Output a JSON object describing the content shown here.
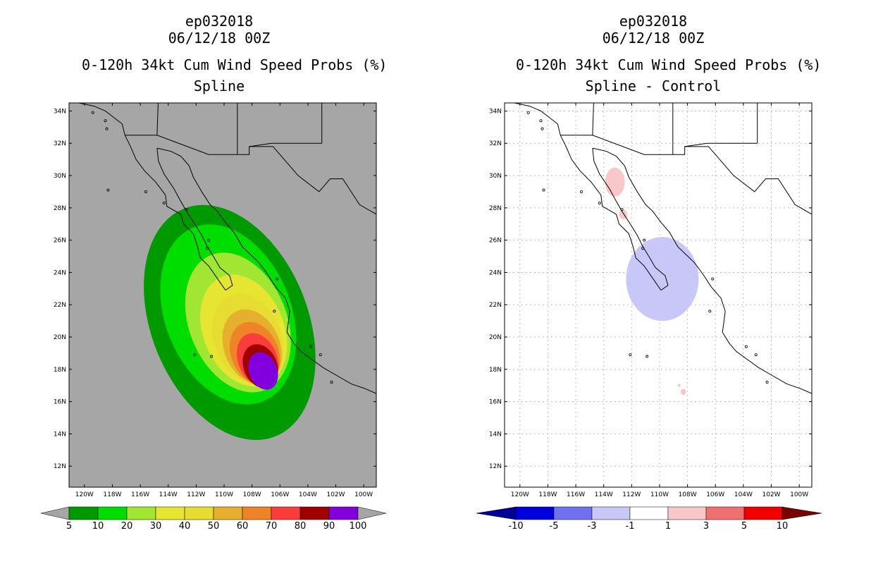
{
  "colors": {
    "left_background": "#a6a6a6",
    "right_background": "#ffffff",
    "coast": "#000000"
  },
  "chart_data": [
    {
      "type": "contour-map",
      "storm_id": "ep032018",
      "datetime": "06/12/18 00Z",
      "title": "0-120h 34kt Cum Wind Speed Probs (%)",
      "subtitle": "Spline",
      "x_ticks": [
        "120W",
        "118W",
        "116W",
        "114W",
        "112W",
        "110W",
        "108W",
        "106W",
        "104W",
        "102W",
        "100W"
      ],
      "y_ticks": [
        "34N",
        "32N",
        "30N",
        "28N",
        "26N",
        "24N",
        "22N",
        "20N",
        "18N",
        "16N",
        "14N",
        "12N"
      ],
      "xlim_deg_west": [
        121.1,
        99.1
      ],
      "ylim_deg_north": [
        10.7,
        34.5
      ],
      "colorbar": {
        "labels": [
          "5",
          "10",
          "20",
          "30",
          "40",
          "50",
          "60",
          "70",
          "80",
          "90",
          "100"
        ],
        "colors": [
          "#009900",
          "#00dd00",
          "#a0e632",
          "#e6e632",
          "#e6dc32",
          "#e6af2d",
          "#f08228",
          "#fa3c3c",
          "#a00000",
          "#8200dc"
        ]
      },
      "contours": [
        {
          "level": 5,
          "center_lon": -109.6,
          "center_lat": 20.9,
          "radius_lon": 5.6,
          "radius_lat": 7.6
        },
        {
          "level": 10,
          "center_lon": -109.7,
          "center_lat": 21.4,
          "radius_lon": 4.5,
          "radius_lat": 5.8
        },
        {
          "level": 20,
          "center_lon": -109.0,
          "center_lat": 20.9,
          "radius_lon": 3.5,
          "radius_lat": 4.5
        },
        {
          "level": 30,
          "center_lon": -108.6,
          "center_lat": 20.4,
          "radius_lon": 2.9,
          "radius_lat": 3.6
        },
        {
          "level": 40,
          "center_lon": -108.3,
          "center_lat": 19.9,
          "radius_lon": 2.4,
          "radius_lat": 2.9
        },
        {
          "level": 50,
          "center_lon": -108.0,
          "center_lat": 19.4,
          "radius_lon": 2.0,
          "radius_lat": 2.4
        },
        {
          "level": 60,
          "center_lon": -107.8,
          "center_lat": 19.0,
          "radius_lon": 1.7,
          "radius_lat": 2.0
        },
        {
          "level": 70,
          "center_lon": -107.6,
          "center_lat": 18.6,
          "radius_lon": 1.4,
          "radius_lat": 1.7
        },
        {
          "level": 80,
          "center_lon": -107.4,
          "center_lat": 18.2,
          "radius_lon": 1.2,
          "radius_lat": 1.4
        },
        {
          "level": 90,
          "center_lon": -107.2,
          "center_lat": 17.9,
          "radius_lon": 1.0,
          "radius_lat": 1.2
        }
      ]
    },
    {
      "type": "contour-map",
      "storm_id": "ep032018",
      "datetime": "06/12/18 00Z",
      "title": "0-120h 34kt Cum Wind Speed Probs (%)",
      "subtitle": "Spline - Control",
      "x_ticks": [
        "120W",
        "118W",
        "116W",
        "114W",
        "112W",
        "110W",
        "108W",
        "106W",
        "104W",
        "102W",
        "100W"
      ],
      "y_ticks": [
        "34N",
        "32N",
        "30N",
        "28N",
        "26N",
        "24N",
        "22N",
        "20N",
        "18N",
        "16N",
        "14N",
        "12N"
      ],
      "xlim_deg_west": [
        121.1,
        99.1
      ],
      "ylim_deg_north": [
        10.7,
        34.5
      ],
      "grid": true,
      "colorbar": {
        "labels": [
          "-10",
          "-5",
          "-3",
          "-1",
          "1",
          "3",
          "5",
          "10"
        ],
        "colors": [
          "#0000dc",
          "#7070f0",
          "#c8c8f8",
          "#ffffff",
          "#f8c8c8",
          "#f07070",
          "#f00000"
        ],
        "end_colors": [
          "#000096",
          "#780000"
        ]
      },
      "anomalies": [
        {
          "value_range": "-3 to -1",
          "center_lon": -109.8,
          "center_lat": 23.6,
          "radius_lon": 2.6,
          "radius_lat": 2.6
        },
        {
          "value_range": "1 to 3",
          "center_lon": -113.2,
          "center_lat": 29.6,
          "radius_lon": 0.7,
          "radius_lat": 0.9
        },
        {
          "value_range": "1 to 3",
          "center_lon": -112.6,
          "center_lat": 27.6,
          "radius_lon": 0.3,
          "radius_lat": 0.3
        },
        {
          "value_range": "1 to 3",
          "center_lon": -108.3,
          "center_lat": 16.6,
          "radius_lon": 0.2,
          "radius_lat": 0.2
        },
        {
          "value_range": "1 to 3",
          "center_lon": -108.6,
          "center_lat": 17.0,
          "radius_lon": 0.1,
          "radius_lat": 0.1
        }
      ]
    }
  ]
}
